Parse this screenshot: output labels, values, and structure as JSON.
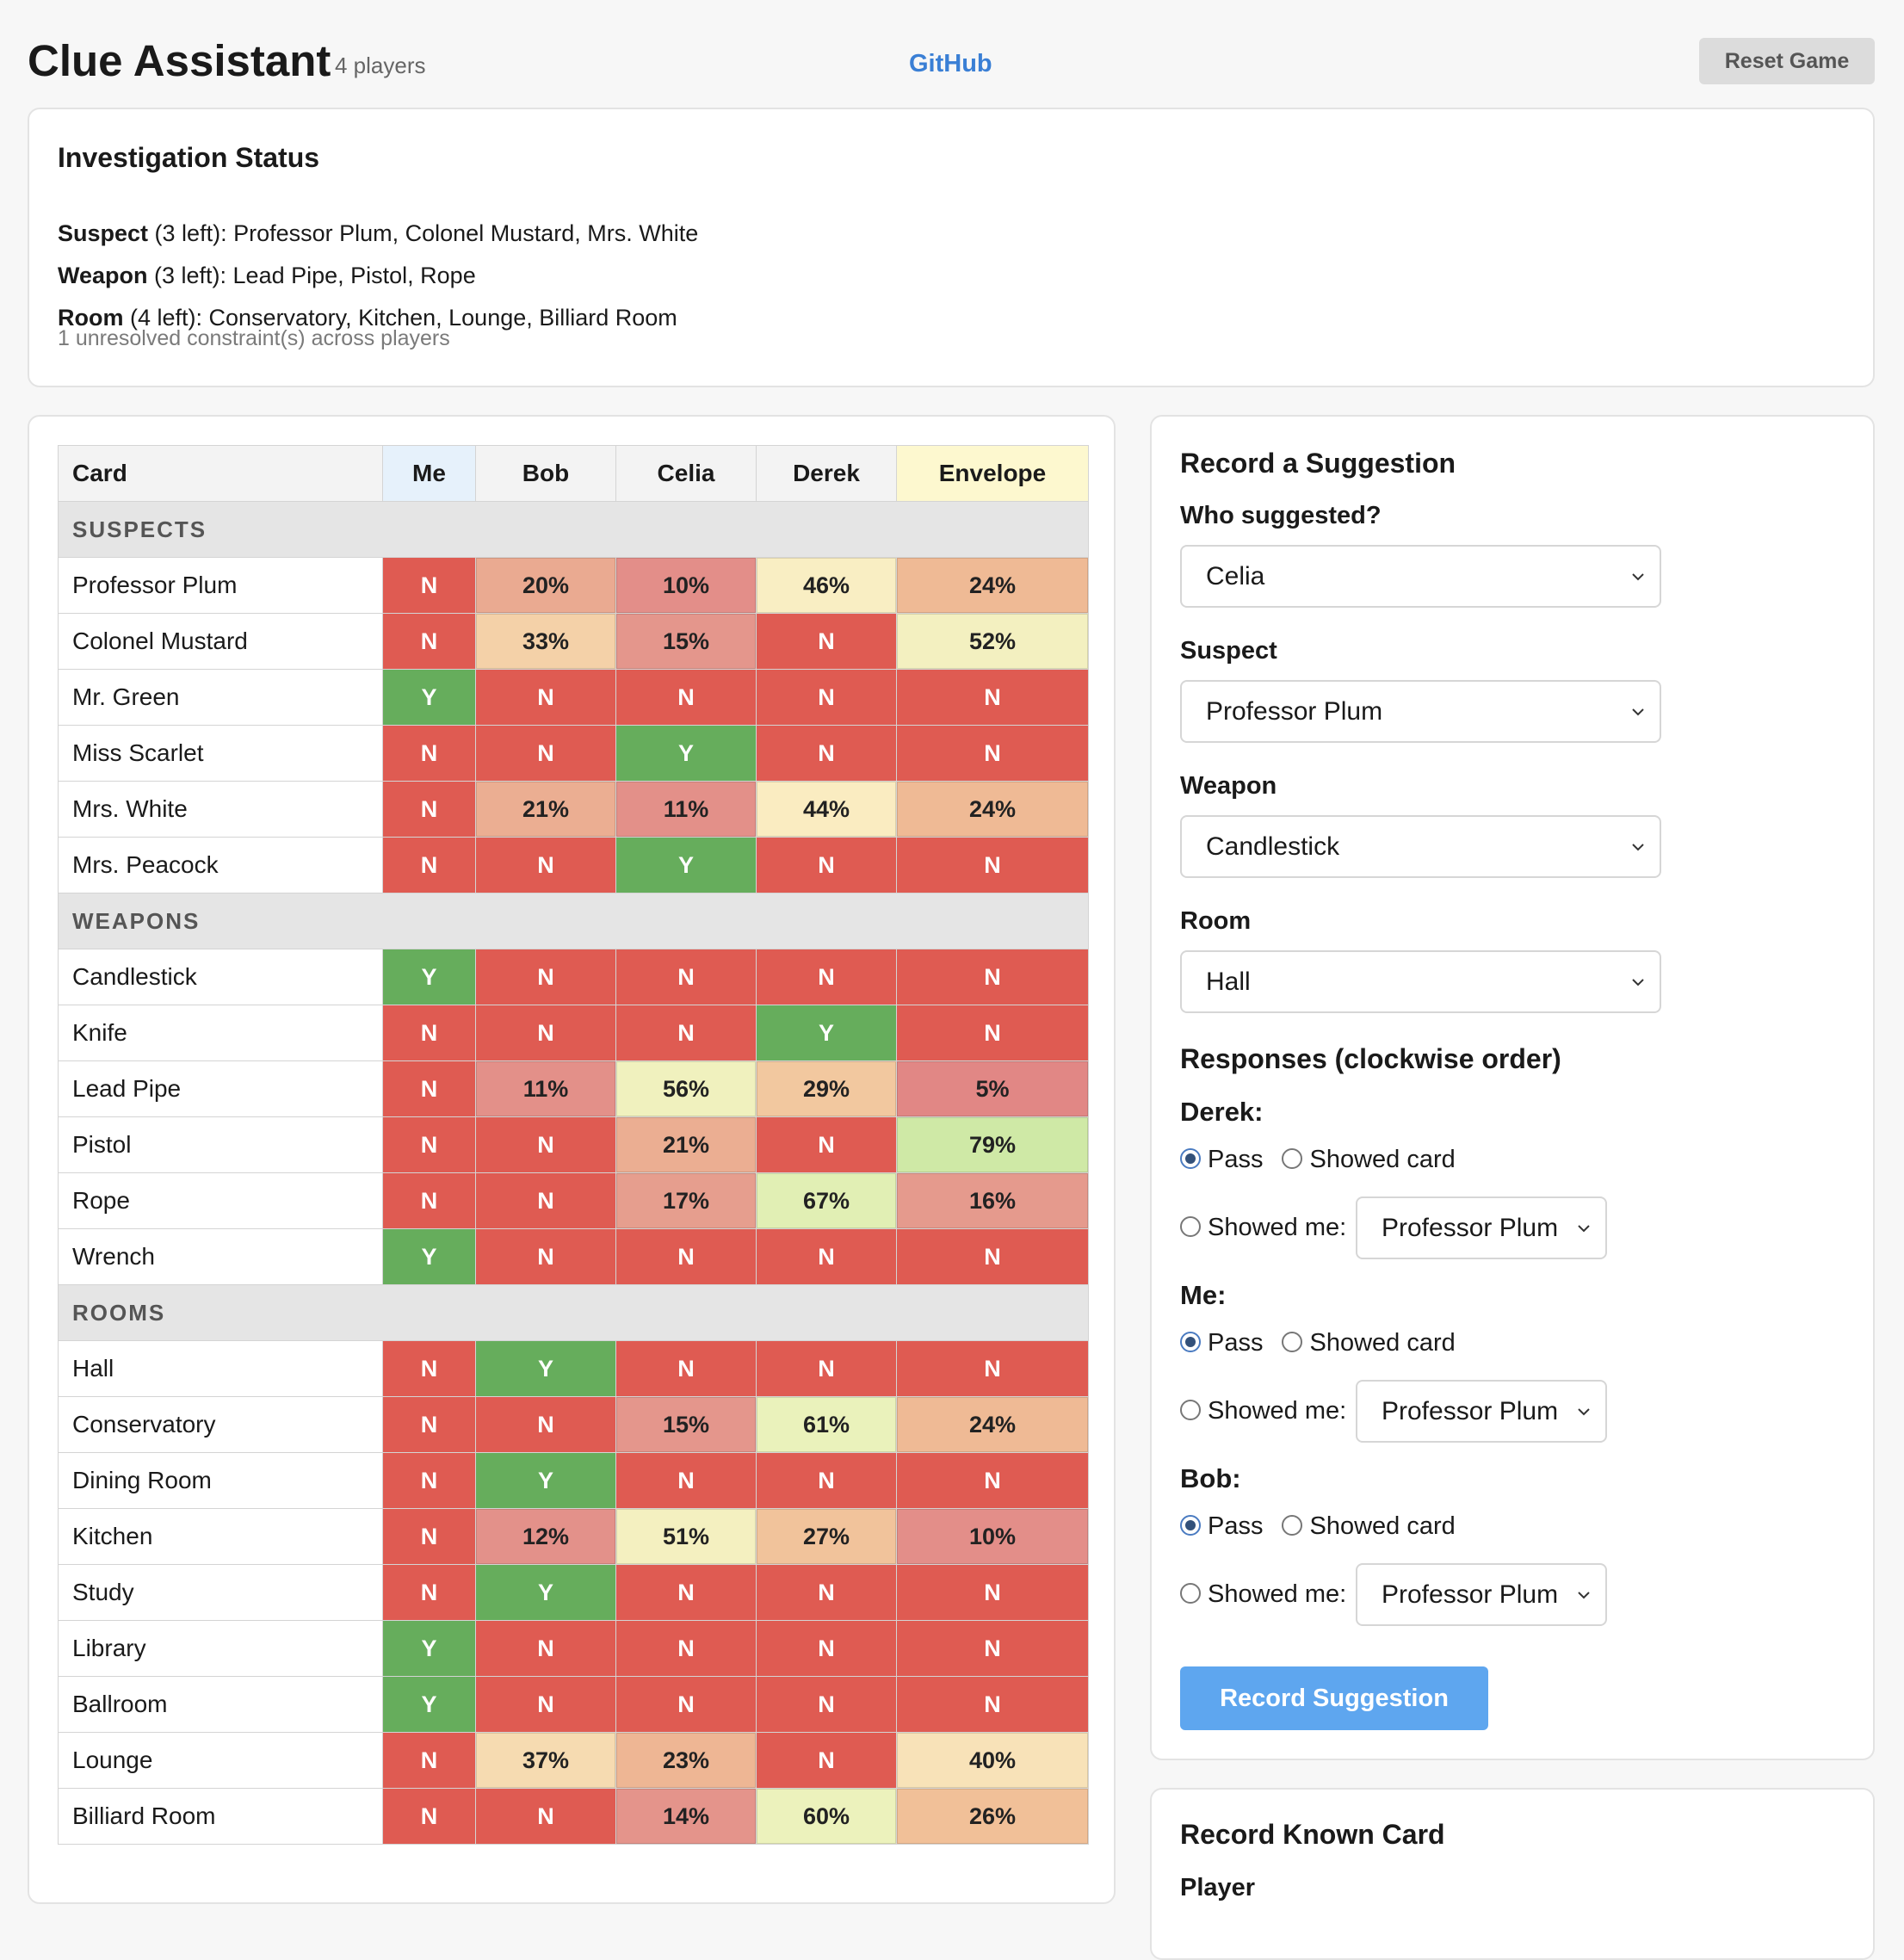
{
  "header": {
    "title": "Clue Assistant",
    "players": "4 players",
    "github": "GitHub",
    "reset": "Reset Game"
  },
  "status": {
    "title": "Investigation Status",
    "lines": [
      {
        "category": "Suspect",
        "count": "(3 left):",
        "items": "Professor Plum, Colonel Mustard, Mrs. White"
      },
      {
        "category": "Weapon",
        "count": "(3 left):",
        "items": "Lead Pipe, Pistol, Rope"
      },
      {
        "category": "Room",
        "count": "(4 left):",
        "items": "Conservatory, Kitchen, Lounge, Billiard Room"
      }
    ],
    "note": "1 unresolved constraint(s) across players"
  },
  "grid": {
    "columns": [
      "Card",
      "Me",
      "Bob",
      "Celia",
      "Derek",
      "Envelope"
    ],
    "sections": [
      {
        "name": "SUSPECTS",
        "rows": [
          {
            "card": "Professor Plum",
            "values": [
              "N",
              "20%",
              "10%",
              "46%",
              "24%"
            ]
          },
          {
            "card": "Colonel Mustard",
            "values": [
              "N",
              "33%",
              "15%",
              "N",
              "52%"
            ]
          },
          {
            "card": "Mr. Green",
            "values": [
              "Y",
              "N",
              "N",
              "N",
              "N"
            ]
          },
          {
            "card": "Miss Scarlet",
            "values": [
              "N",
              "N",
              "Y",
              "N",
              "N"
            ]
          },
          {
            "card": "Mrs. White",
            "values": [
              "N",
              "21%",
              "11%",
              "44%",
              "24%"
            ]
          },
          {
            "card": "Mrs. Peacock",
            "values": [
              "N",
              "N",
              "Y",
              "N",
              "N"
            ]
          }
        ]
      },
      {
        "name": "WEAPONS",
        "rows": [
          {
            "card": "Candlestick",
            "values": [
              "Y",
              "N",
              "N",
              "N",
              "N"
            ]
          },
          {
            "card": "Knife",
            "values": [
              "N",
              "N",
              "N",
              "Y",
              "N"
            ]
          },
          {
            "card": "Lead Pipe",
            "values": [
              "N",
              "11%",
              "56%",
              "29%",
              "5%"
            ]
          },
          {
            "card": "Pistol",
            "values": [
              "N",
              "N",
              "21%",
              "N",
              "79%"
            ]
          },
          {
            "card": "Rope",
            "values": [
              "N",
              "N",
              "17%",
              "67%",
              "16%"
            ]
          },
          {
            "card": "Wrench",
            "values": [
              "Y",
              "N",
              "N",
              "N",
              "N"
            ]
          }
        ]
      },
      {
        "name": "ROOMS",
        "rows": [
          {
            "card": "Hall",
            "values": [
              "N",
              "Y",
              "N",
              "N",
              "N"
            ]
          },
          {
            "card": "Conservatory",
            "values": [
              "N",
              "N",
              "15%",
              "61%",
              "24%"
            ]
          },
          {
            "card": "Dining Room",
            "values": [
              "N",
              "Y",
              "N",
              "N",
              "N"
            ]
          },
          {
            "card": "Kitchen",
            "values": [
              "N",
              "12%",
              "51%",
              "27%",
              "10%"
            ]
          },
          {
            "card": "Study",
            "values": [
              "N",
              "Y",
              "N",
              "N",
              "N"
            ]
          },
          {
            "card": "Library",
            "values": [
              "Y",
              "N",
              "N",
              "N",
              "N"
            ]
          },
          {
            "card": "Ballroom",
            "values": [
              "Y",
              "N",
              "N",
              "N",
              "N"
            ]
          },
          {
            "card": "Lounge",
            "values": [
              "N",
              "37%",
              "23%",
              "N",
              "40%"
            ]
          },
          {
            "card": "Billiard Room",
            "values": [
              "N",
              "N",
              "14%",
              "60%",
              "26%"
            ]
          }
        ]
      }
    ],
    "colors": {
      "yes": "#66ad5c",
      "no": "#df5b52"
    }
  },
  "suggestion": {
    "title": "Record a Suggestion",
    "who_label": "Who suggested?",
    "who_value": "Celia",
    "suspect_label": "Suspect",
    "suspect_value": "Professor Plum",
    "weapon_label": "Weapon",
    "weapon_value": "Candlestick",
    "room_label": "Room",
    "room_value": "Hall",
    "responses_title": "Responses (clockwise order)",
    "responses": [
      {
        "player": "Derek:",
        "pass": "Pass",
        "showed": "Showed card",
        "showed_me": "Showed me:",
        "card": "Professor Plum"
      },
      {
        "player": "Me:",
        "pass": "Pass",
        "showed": "Showed card",
        "showed_me": "Showed me:",
        "card": "Professor Plum"
      },
      {
        "player": "Bob:",
        "pass": "Pass",
        "showed": "Showed card",
        "showed_me": "Showed me:",
        "card": "Professor Plum"
      }
    ],
    "submit": "Record Suggestion"
  },
  "known": {
    "title": "Record Known Card",
    "player_label": "Player"
  }
}
